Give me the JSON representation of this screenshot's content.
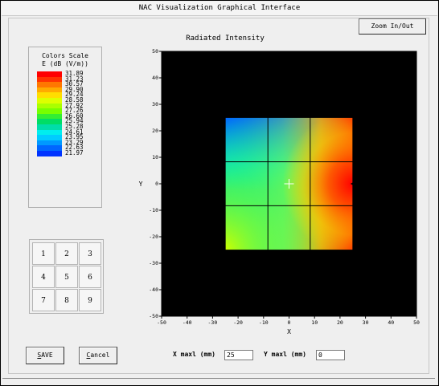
{
  "window": {
    "title": "NAC Visualization Graphical Interface"
  },
  "toolbar": {
    "zoom_label": "Zoom In/Out"
  },
  "plot": {
    "title": "Radiated Intensity",
    "xlabel": "X",
    "ylabel": "Y",
    "x_ticks": [
      "-50",
      "-40",
      "-30",
      "-20",
      "-10",
      "0",
      "10",
      "20",
      "30",
      "40",
      "50"
    ],
    "y_ticks": [
      "50",
      "40",
      "30",
      "20",
      "10",
      "0",
      "-10",
      "-20",
      "-30",
      "-40",
      "-50"
    ]
  },
  "color_scale": {
    "title1": "Colors Scale",
    "title2": "E (dB (V/m))",
    "values": [
      "31.89",
      "31.23",
      "30.57",
      "29.90",
      "29.24",
      "28.58",
      "27.92",
      "27.26",
      "26.60",
      "25.94",
      "25.28",
      "24.61",
      "23.95",
      "23.29",
      "22.63",
      "21.97"
    ],
    "colors": [
      "#ff0000",
      "#ff3300",
      "#ff7700",
      "#ffaa00",
      "#ffdd00",
      "#ddff00",
      "#aaff00",
      "#77ff00",
      "#33ee33",
      "#00dd66",
      "#00ddaa",
      "#00eeee",
      "#00ccff",
      "#0099ff",
      "#0066ff",
      "#0033ff"
    ]
  },
  "keypad": {
    "keys": [
      "1",
      "2",
      "3",
      "4",
      "5",
      "6",
      "7",
      "8",
      "9"
    ]
  },
  "form": {
    "xmax_label": "X maxl (mm)",
    "xmax_value": "25",
    "ymax_label": "Y maxl (mm)",
    "ymax_value": "0"
  },
  "buttons": {
    "save_first": "S",
    "save_rest": "AVE",
    "cancel_first": "C",
    "cancel_rest": "ancel"
  },
  "chart_data": {
    "type": "heatmap",
    "title": "Radiated Intensity",
    "xlabel": "X",
    "ylabel": "Y",
    "xlim": [
      -50,
      50
    ],
    "ylim": [
      -50,
      50
    ],
    "map_extent": {
      "x": [
        -25,
        25
      ],
      "y": [
        -25,
        25
      ]
    },
    "grid_lines_x": [
      -8.3,
      8.3
    ],
    "grid_lines_y": [
      -8.3,
      8.3
    ],
    "colorbar_label": "E (dB (V/m))",
    "colorbar_range": [
      21.97,
      31.89
    ],
    "background": "#000000"
  }
}
